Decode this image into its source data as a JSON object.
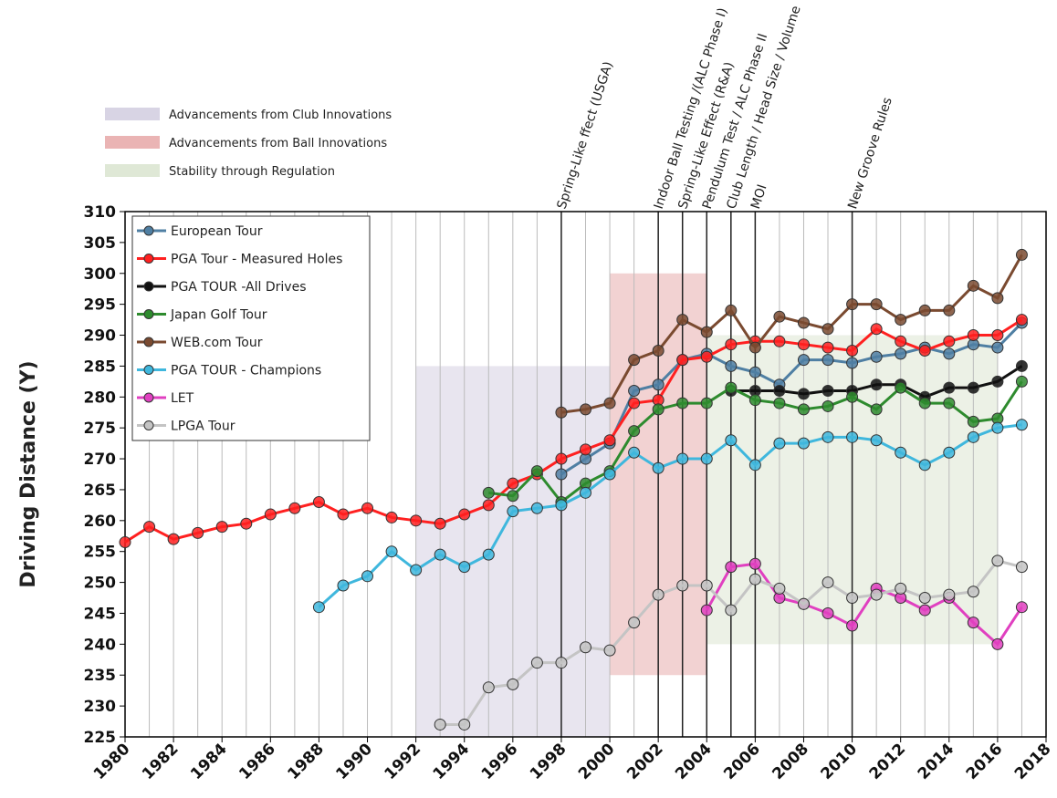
{
  "chart_data": {
    "type": "line",
    "y_label": "Driving Distance (Y)",
    "x": [
      1980,
      1981,
      1982,
      1983,
      1984,
      1985,
      1986,
      1987,
      1988,
      1989,
      1990,
      1991,
      1992,
      1993,
      1994,
      1995,
      1996,
      1997,
      1998,
      1999,
      2000,
      2001,
      2002,
      2003,
      2004,
      2005,
      2006,
      2007,
      2008,
      2009,
      2010,
      2011,
      2012,
      2013,
      2014,
      2015,
      2016,
      2017
    ],
    "xlim": [
      1980,
      2018
    ],
    "xticks": [
      1980,
      1982,
      1984,
      1986,
      1988,
      1990,
      1992,
      1994,
      1996,
      1998,
      2000,
      2002,
      2004,
      2006,
      2008,
      2010,
      2012,
      2014,
      2016,
      2018
    ],
    "ylim": [
      225,
      310
    ],
    "yticks": [
      225,
      230,
      235,
      240,
      245,
      250,
      255,
      260,
      265,
      270,
      275,
      280,
      285,
      290,
      295,
      300,
      305,
      310
    ],
    "grid": true,
    "legend": "upper left",
    "series": [
      {
        "name": "European Tour",
        "color": "#4f7fa3",
        "values": [
          null,
          null,
          null,
          null,
          null,
          null,
          null,
          null,
          null,
          null,
          null,
          null,
          null,
          null,
          null,
          null,
          null,
          null,
          267.5,
          270,
          272.5,
          281,
          282,
          286,
          287,
          285,
          284,
          282,
          286,
          286,
          285.5,
          286.5,
          287,
          288,
          287,
          288.5,
          288,
          292
        ]
      },
      {
        "name": "PGA Tour - Measured Holes",
        "color": "#ff2020",
        "values": [
          256.5,
          259,
          257,
          258,
          259,
          259.5,
          261,
          262,
          263,
          261,
          262,
          260.5,
          260,
          259.5,
          261,
          262.5,
          266,
          267.5,
          270,
          271.5,
          273,
          279,
          279.5,
          286,
          286.5,
          288.5,
          289,
          289,
          288.5,
          288,
          287.5,
          291,
          289,
          287.5,
          289,
          290,
          290,
          292.5
        ]
      },
      {
        "name": "PGA TOUR -All Drives",
        "color": "#111111",
        "values": [
          null,
          null,
          null,
          null,
          null,
          null,
          null,
          null,
          null,
          null,
          null,
          null,
          null,
          null,
          null,
          null,
          null,
          null,
          null,
          null,
          null,
          null,
          null,
          null,
          null,
          281,
          281,
          281,
          280.5,
          281,
          281,
          282,
          282,
          280,
          281.5,
          281.5,
          282.5,
          285
        ]
      },
      {
        "name": "Japan Golf Tour",
        "color": "#2e8b2e",
        "values": [
          null,
          null,
          null,
          null,
          null,
          null,
          null,
          null,
          null,
          null,
          null,
          null,
          null,
          null,
          null,
          264.5,
          264,
          268,
          263,
          266,
          268,
          274.5,
          278,
          279,
          279,
          281.5,
          279.5,
          279,
          278,
          278.5,
          280,
          278,
          281.5,
          279,
          279,
          276,
          276.5,
          282.5
        ]
      },
      {
        "name": "WEB.com Tour",
        "color": "#7a4a30",
        "values": [
          null,
          null,
          null,
          null,
          null,
          null,
          null,
          null,
          null,
          null,
          null,
          null,
          null,
          null,
          null,
          null,
          null,
          null,
          277.5,
          278,
          279,
          286,
          287.5,
          292.5,
          290.5,
          294,
          288,
          293,
          292,
          291,
          295,
          295,
          292.5,
          294,
          294,
          298,
          296,
          303
        ]
      },
      {
        "name": "PGA TOUR - Champions",
        "color": "#3fb7dd",
        "values": [
          null,
          null,
          null,
          null,
          null,
          null,
          null,
          null,
          246,
          249.5,
          251,
          255,
          252,
          254.5,
          252.5,
          254.5,
          261.5,
          262,
          262.5,
          264.5,
          267.5,
          271,
          268.5,
          270,
          270,
          273,
          269,
          272.5,
          272.5,
          273.5,
          273.5,
          273,
          271,
          269,
          271,
          273.5,
          275,
          275.5
        ]
      },
      {
        "name": "LET",
        "color": "#e040c0",
        "values": [
          null,
          null,
          null,
          null,
          null,
          null,
          null,
          null,
          null,
          null,
          null,
          null,
          null,
          null,
          null,
          null,
          null,
          null,
          null,
          null,
          null,
          null,
          null,
          null,
          245.5,
          252.5,
          253,
          247.5,
          246.5,
          245,
          243,
          249,
          247.5,
          245.5,
          247.5,
          243.5,
          240,
          246
        ]
      },
      {
        "name": "LPGA Tour",
        "color": "#c4c4c4",
        "values": [
          null,
          null,
          null,
          null,
          null,
          null,
          null,
          null,
          null,
          null,
          null,
          null,
          null,
          227,
          227,
          233,
          233.5,
          237,
          237,
          239.5,
          239,
          243.5,
          248,
          249.5,
          249.5,
          245.5,
          250.5,
          249,
          246.5,
          250,
          247.5,
          248,
          249,
          247.5,
          248,
          248.5,
          253.5,
          252.5
        ]
      }
    ],
    "regions": [
      {
        "name": "Advancements from Club Innovations",
        "color": "#d8d4e4",
        "x": [
          1992,
          2000
        ],
        "y": [
          225,
          285
        ]
      },
      {
        "name": "Advancements from Ball Innovations",
        "color": "#eab4b4",
        "x": [
          2000,
          2004
        ],
        "y": [
          235,
          300
        ]
      },
      {
        "name": "Stability through Regulation",
        "color": "#dfe8d6",
        "x": [
          2004,
          2016
        ],
        "y": [
          240,
          290
        ]
      }
    ],
    "annotations": [
      {
        "text": "Spring-Like ffect (USGA)",
        "x": 1998
      },
      {
        "text": "Indoor Ball Testing /(ALC Phase I)",
        "x": 2002
      },
      {
        "text": "Spring-Like Effect (R&A)",
        "x": 2003
      },
      {
        "text": "Pendulum Test / ALC Phase II",
        "x": 2004
      },
      {
        "text": "Club Length / Head Size / Volume",
        "x": 2005
      },
      {
        "text": "MOI",
        "x": 2006
      },
      {
        "text": "New Groove Rules",
        "x": 2010
      }
    ]
  }
}
